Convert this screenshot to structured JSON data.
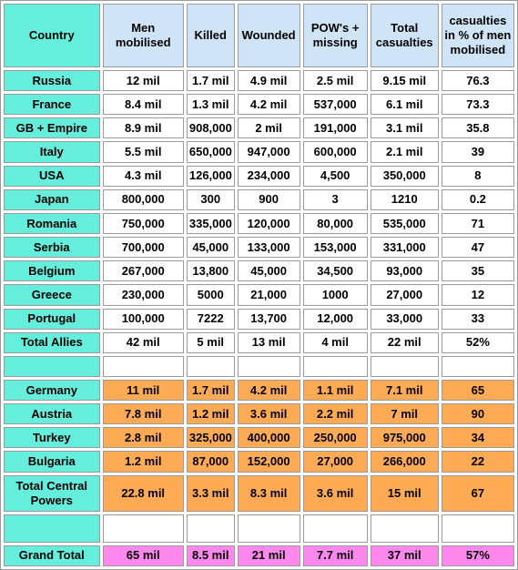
{
  "headers": [
    "Country",
    "Men mobilised",
    "Killed",
    "Wounded",
    "POW's + missing",
    "Total casualties",
    "casualties in % of men mobilised"
  ],
  "allies": [
    [
      "Russia",
      "12 mil",
      "1.7 mil",
      "4.9 mil",
      "2.5 mil",
      "9.15 mil",
      "76.3"
    ],
    [
      "France",
      "8.4 mil",
      "1.3 mil",
      "4.2 mil",
      "537,000",
      "6.1 mil",
      "73.3"
    ],
    [
      "GB + Empire",
      "8.9 mil",
      "908,000",
      "2 mil",
      "191,000",
      "3.1 mil",
      "35.8"
    ],
    [
      "Italy",
      "5.5 mil",
      "650,000",
      "947,000",
      "600,000",
      "2.1 mil",
      "39"
    ],
    [
      "USA",
      "4.3 mil",
      "126,000",
      "234,000",
      "4,500",
      "350,000",
      "8"
    ],
    [
      "Japan",
      "800,000",
      "300",
      "900",
      "3",
      "1210",
      "0.2"
    ],
    [
      "Romania",
      "750,000",
      "335,000",
      "120,000",
      "80,000",
      "535,000",
      "71"
    ],
    [
      "Serbia",
      "700,000",
      "45,000",
      "133,000",
      "153,000",
      "331,000",
      "47"
    ],
    [
      "Belgium",
      "267,000",
      "13,800",
      "45,000",
      "34,500",
      "93,000",
      "35"
    ],
    [
      "Greece",
      "230,000",
      "5000",
      "21,000",
      "1000",
      "27,000",
      "12"
    ],
    [
      "Portugal",
      "100,000",
      "7222",
      "13,700",
      "12,000",
      "33,000",
      "33"
    ],
    [
      "Total Allies",
      "42 mil",
      "5 mil",
      "13 mil",
      "4 mil",
      "22 mil",
      "52%"
    ]
  ],
  "central": [
    [
      "Germany",
      "11 mil",
      "1.7 mil",
      "4.2 mil",
      "1.1 mil",
      "7.1 mil",
      "65"
    ],
    [
      "Austria",
      "7.8 mil",
      "1.2 mil",
      "3.6 mil",
      "2.2 mil",
      "7 mil",
      "90"
    ],
    [
      "Turkey",
      "2.8 mil",
      "325,000",
      "400,000",
      "250,000",
      "975,000",
      "34"
    ],
    [
      "Bulgaria",
      "1.2 mil",
      "87,000",
      "152,000",
      "27,000",
      "266,000",
      "22"
    ],
    [
      "Total Central Powers",
      "22.8 mil",
      "3.3 mil",
      "8.3 mil",
      "3.6 mil",
      "15 mil",
      "67"
    ]
  ],
  "grand_total": [
    "Grand Total",
    "65 mil",
    "8.5 mil",
    "21 mil",
    "7.7 mil",
    "37 mil",
    "57%"
  ],
  "colors": {
    "country_column": "#66eedd",
    "header": "#cfe4f7",
    "central_powers": "#ffaa55",
    "grand_total": "#ff88ee"
  }
}
